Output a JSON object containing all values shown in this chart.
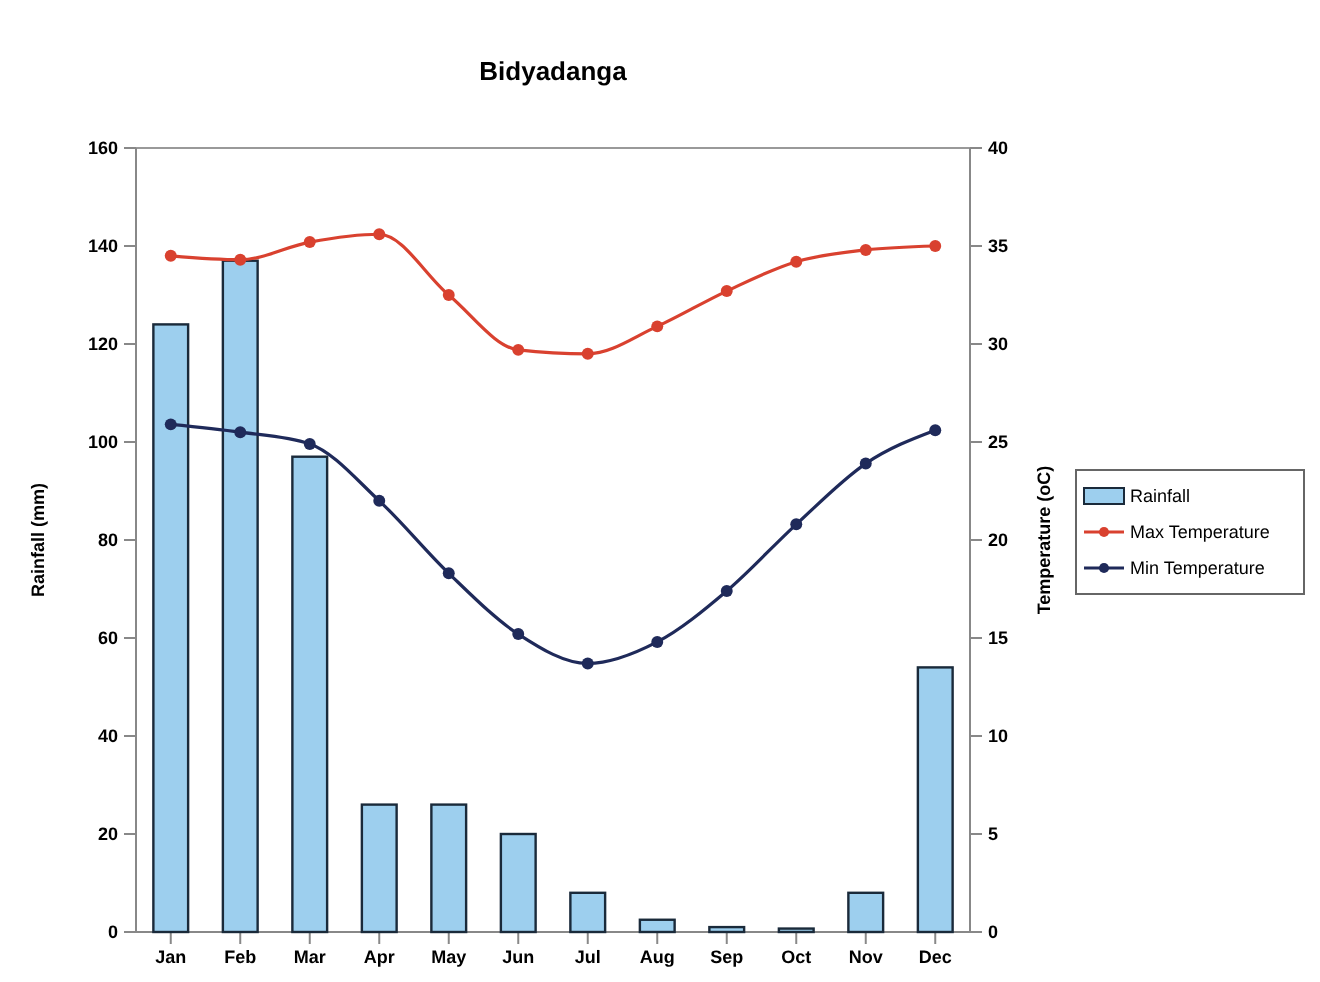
{
  "chart_data": {
    "type": "bar",
    "title": "Bidyadanga",
    "ylabel": "Rainfall (mm)",
    "y2label": "Temperature (oC)",
    "categories": [
      "Jan",
      "Feb",
      "Mar",
      "Apr",
      "May",
      "Jun",
      "Jul",
      "Aug",
      "Sep",
      "Oct",
      "Nov",
      "Dec"
    ],
    "series": [
      {
        "name": "Rainfall",
        "color": "#9dcfee",
        "values": [
          124,
          137,
          97,
          26,
          26,
          20,
          8,
          2.5,
          1,
          0.7,
          8,
          54
        ]
      },
      {
        "name": "Max Temperature",
        "type": "line",
        "axis": "y2",
        "color": "#d9412f",
        "values": [
          34.5,
          34.3,
          35.2,
          35.6,
          32.5,
          29.7,
          29.5,
          30.9,
          32.7,
          34.2,
          34.8,
          35.0
        ]
      },
      {
        "name": "Min Temperature",
        "type": "line",
        "axis": "y2",
        "color": "#1f2a5a",
        "values": [
          25.9,
          25.5,
          24.9,
          22,
          18.3,
          15.2,
          13.7,
          14.8,
          17.4,
          20.8,
          23.9,
          25.6
        ]
      }
    ],
    "ylim": [
      0,
      160
    ],
    "yticks": [
      0,
      20,
      40,
      60,
      80,
      100,
      120,
      140,
      160
    ],
    "y2lim": [
      0,
      40
    ],
    "y2ticks": [
      0,
      5,
      10,
      15,
      20,
      25,
      30,
      35,
      40
    ],
    "grid": false,
    "legend": "right",
    "marker": "circle",
    "line_style": "solid"
  }
}
